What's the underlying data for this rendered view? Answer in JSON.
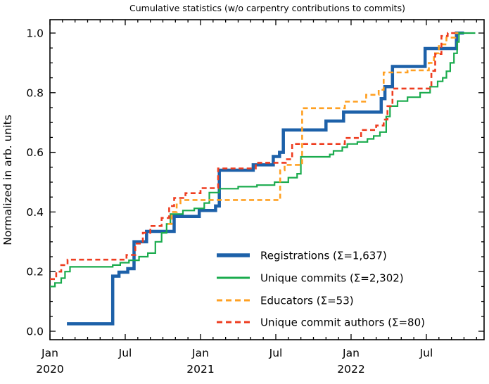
{
  "title": "Cumulative statistics (w/o carpentry contributions to commits)",
  "ylabel": "Normalized in arb. units",
  "axis": {
    "x_major": [
      {
        "m": 0,
        "label": "Jan",
        "year": "2020"
      },
      {
        "m": 6,
        "label": "Jul",
        "year": ""
      },
      {
        "m": 12,
        "label": "Jan",
        "year": "2021"
      },
      {
        "m": 18,
        "label": "Jul",
        "year": ""
      },
      {
        "m": 24,
        "label": "Jan",
        "year": "2022"
      },
      {
        "m": 30,
        "label": "Jul",
        "year": ""
      }
    ],
    "x_minor_step_months": 1,
    "x_range_months": [
      0,
      34.6
    ],
    "y_major": [
      {
        "v": 0.0,
        "label": "0.0"
      },
      {
        "v": 0.2,
        "label": "0.2"
      },
      {
        "v": 0.4,
        "label": "0.4"
      },
      {
        "v": 0.6,
        "label": "0.6"
      },
      {
        "v": 0.8,
        "label": "0.8"
      },
      {
        "v": 1.0,
        "label": "1.0"
      }
    ],
    "y_minor_step": 0.05,
    "y_range": [
      0.0,
      1.0
    ]
  },
  "chart_data": {
    "type": "line",
    "x_unit": "months since Jan 2020",
    "step_mode": "step-after",
    "grid": false,
    "legend_position": "lower right inside, no frame",
    "series": [
      {
        "name": "registrations",
        "label": "Registrations  (Σ=1,637)",
        "color": "#1d61a9",
        "width": 4.5,
        "dash": null,
        "end_m": 33.0,
        "points": [
          [
            1.35,
            0.025
          ],
          [
            5.0,
            0.185
          ],
          [
            5.5,
            0.198
          ],
          [
            6.2,
            0.21
          ],
          [
            6.7,
            0.3
          ],
          [
            7.7,
            0.335
          ],
          [
            9.9,
            0.385
          ],
          [
            11.9,
            0.405
          ],
          [
            13.2,
            0.42
          ],
          [
            13.5,
            0.54
          ],
          [
            16.2,
            0.558
          ],
          [
            17.8,
            0.586
          ],
          [
            18.3,
            0.6
          ],
          [
            18.6,
            0.675
          ],
          [
            22.0,
            0.705
          ],
          [
            23.4,
            0.735
          ],
          [
            26.4,
            0.78
          ],
          [
            26.7,
            0.82
          ],
          [
            27.3,
            0.888
          ],
          [
            29.9,
            0.948
          ],
          [
            32.4,
            1.0
          ]
        ]
      },
      {
        "name": "unique-commits",
        "label": "Unique commits (Σ=2,302)",
        "color": "#1aab4d",
        "width": 2.2,
        "dash": null,
        "end_m": 33.9,
        "points": [
          [
            0,
            0.15
          ],
          [
            0.4,
            0.162
          ],
          [
            0.9,
            0.178
          ],
          [
            1.2,
            0.2
          ],
          [
            1.6,
            0.216
          ],
          [
            5.0,
            0.222
          ],
          [
            5.6,
            0.23
          ],
          [
            6.3,
            0.238
          ],
          [
            7.1,
            0.25
          ],
          [
            7.8,
            0.262
          ],
          [
            8.4,
            0.3
          ],
          [
            8.9,
            0.33
          ],
          [
            9.3,
            0.36
          ],
          [
            9.6,
            0.393
          ],
          [
            10.6,
            0.405
          ],
          [
            11.5,
            0.412
          ],
          [
            12.3,
            0.43
          ],
          [
            12.7,
            0.465
          ],
          [
            13.5,
            0.478
          ],
          [
            15.0,
            0.485
          ],
          [
            16.5,
            0.49
          ],
          [
            17.9,
            0.5
          ],
          [
            19.0,
            0.515
          ],
          [
            19.7,
            0.528
          ],
          [
            20.0,
            0.585
          ],
          [
            22.3,
            0.593
          ],
          [
            22.6,
            0.605
          ],
          [
            23.3,
            0.617
          ],
          [
            23.7,
            0.628
          ],
          [
            24.5,
            0.635
          ],
          [
            25.3,
            0.645
          ],
          [
            25.8,
            0.655
          ],
          [
            26.3,
            0.668
          ],
          [
            26.8,
            0.72
          ],
          [
            27.1,
            0.755
          ],
          [
            27.7,
            0.772
          ],
          [
            28.5,
            0.785
          ],
          [
            29.5,
            0.8
          ],
          [
            30.3,
            0.82
          ],
          [
            30.9,
            0.838
          ],
          [
            31.3,
            0.85
          ],
          [
            31.6,
            0.872
          ],
          [
            31.9,
            0.9
          ],
          [
            32.2,
            0.932
          ],
          [
            32.45,
            0.97
          ],
          [
            32.6,
            1.0
          ]
        ]
      },
      {
        "name": "educators",
        "label": "Educators (Σ=53)",
        "color": "#ffa022",
        "width": 2.6,
        "dash": [
          7,
          4.5
        ],
        "end_m": 32.55,
        "points": [
          [
            9.4,
            0.36
          ],
          [
            9.7,
            0.4
          ],
          [
            10.1,
            0.425
          ],
          [
            10.4,
            0.44
          ],
          [
            18.35,
            0.54
          ],
          [
            18.7,
            0.558
          ],
          [
            20.1,
            0.748
          ],
          [
            23.5,
            0.77
          ],
          [
            25.2,
            0.793
          ],
          [
            26.2,
            0.81
          ],
          [
            26.6,
            0.868
          ],
          [
            28.5,
            0.875
          ],
          [
            30.2,
            0.9
          ],
          [
            30.6,
            0.932
          ],
          [
            31.0,
            0.962
          ],
          [
            31.6,
            0.985
          ],
          [
            32.3,
            1.0
          ]
        ]
      },
      {
        "name": "unique-commit-authors",
        "label": "Unique commit authors (Σ=80)",
        "color": "#ee3d20",
        "width": 2.6,
        "dash": [
          7,
          4.5
        ],
        "end_m": 32.3,
        "points": [
          [
            0,
            0.175
          ],
          [
            0.5,
            0.2
          ],
          [
            0.9,
            0.222
          ],
          [
            1.4,
            0.24
          ],
          [
            6.1,
            0.256
          ],
          [
            6.8,
            0.294
          ],
          [
            7.4,
            0.33
          ],
          [
            8.0,
            0.353
          ],
          [
            8.9,
            0.38
          ],
          [
            9.5,
            0.42
          ],
          [
            9.9,
            0.447
          ],
          [
            10.8,
            0.463
          ],
          [
            12.0,
            0.48
          ],
          [
            13.4,
            0.546
          ],
          [
            16.4,
            0.565
          ],
          [
            18.8,
            0.577
          ],
          [
            19.3,
            0.628
          ],
          [
            23.5,
            0.648
          ],
          [
            24.8,
            0.675
          ],
          [
            26.0,
            0.69
          ],
          [
            26.6,
            0.71
          ],
          [
            26.9,
            0.755
          ],
          [
            27.3,
            0.814
          ],
          [
            30.4,
            0.873
          ],
          [
            30.7,
            0.93
          ],
          [
            31.2,
            0.99
          ],
          [
            31.7,
            1.0
          ]
        ]
      }
    ],
    "totals": {
      "registrations": "1,637",
      "unique_commits": "2,302",
      "educators": "53",
      "unique_commit_authors": "80"
    }
  }
}
